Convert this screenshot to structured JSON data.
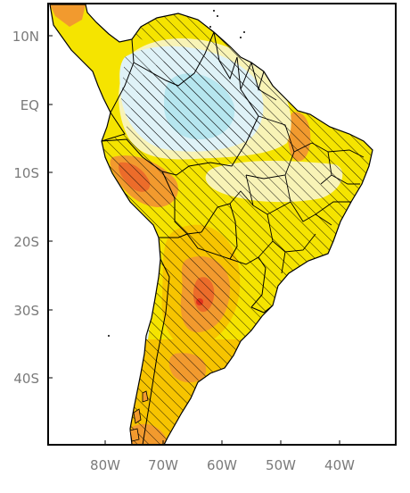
{
  "colors": {
    "ocean": "#ffffff",
    "pale_blue": "#dff2f7",
    "cyan": "#b6e6ef",
    "pale_yellow": "#f8f3b6",
    "yellow": "#f5e400",
    "gold": "#f7c400",
    "orange": "#f29a2e",
    "dark_orange": "#ec6c2a",
    "red": "#e0331d",
    "border": "#000000",
    "hatch": "#000000",
    "tick_text": "#7a7a7a"
  },
  "map": {
    "latitude_labels": [
      "10N",
      "EQ",
      "10S",
      "20S",
      "30S",
      "40S"
    ],
    "longitude_labels": [
      "80W",
      "70W",
      "60W",
      "50W",
      "40W"
    ]
  }
}
